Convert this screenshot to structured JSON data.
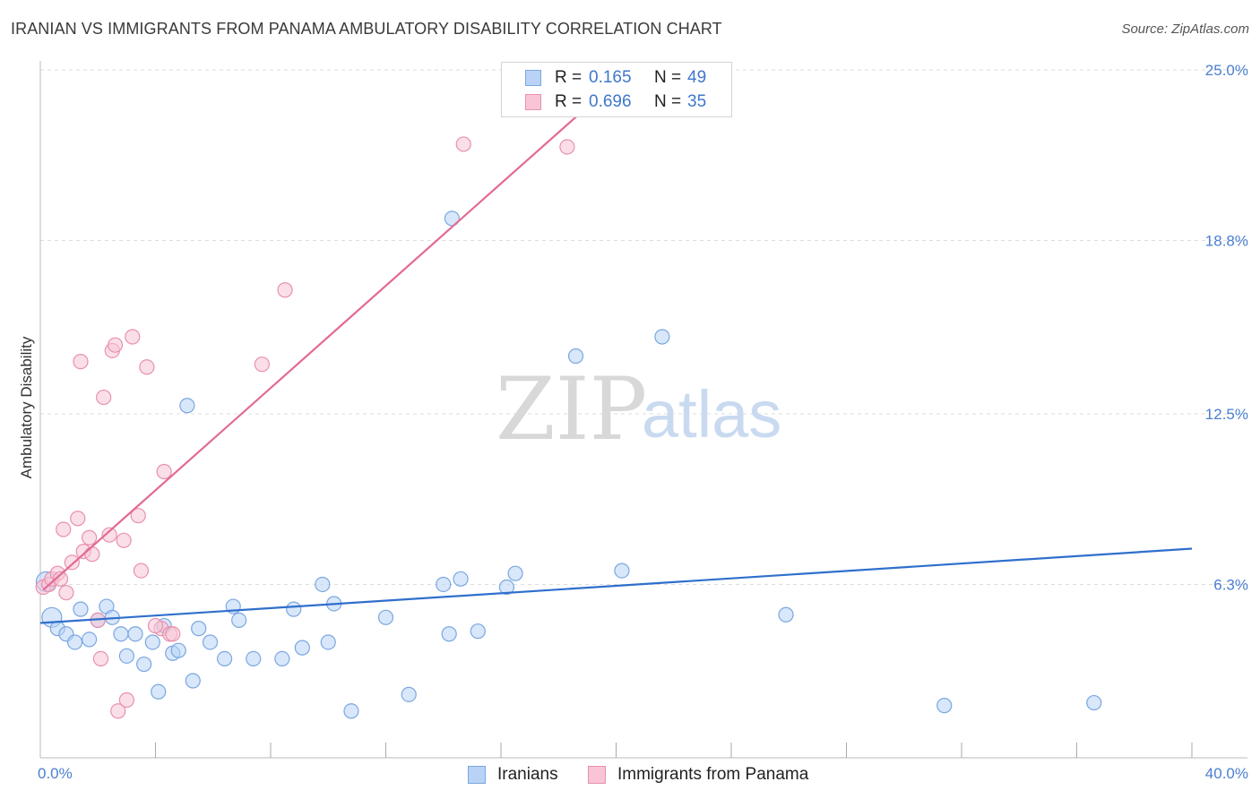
{
  "title": "IRANIAN VS IMMIGRANTS FROM PANAMA AMBULATORY DISABILITY CORRELATION CHART",
  "source": "Source: ZipAtlas.com",
  "watermark": {
    "zip": "ZIP",
    "atlas": "atlas"
  },
  "colors": {
    "blue_fill": "#b8d3f5",
    "blue_stroke": "#7aa7e0",
    "blue_line": "#2f6fcc",
    "pink_fill": "#f8c4d6",
    "pink_stroke": "#e890ae",
    "pink_line": "#e36a93",
    "grid": "#dddddd",
    "tick_text": "#4a7fcf"
  },
  "stats": [
    {
      "r_label": "R =",
      "r_value": "0.165",
      "n_label": "N =",
      "n_value": "49",
      "color": "blue"
    },
    {
      "r_label": "R =",
      "r_value": "0.696",
      "n_label": "N =",
      "n_value": "35",
      "color": "pink"
    }
  ],
  "legend": [
    {
      "label": "Iranians",
      "color": "blue"
    },
    {
      "label": "Immigrants from Panama",
      "color": "pink"
    }
  ],
  "chart_data": {
    "type": "scatter",
    "title": "IRANIAN VS IMMIGRANTS FROM PANAMA AMBULATORY DISABILITY CORRELATION CHART",
    "xlabel": "",
    "ylabel": "Ambulatory Disability",
    "xlim": [
      0,
      40
    ],
    "ylim": [
      0,
      25
    ],
    "x_tick_labels": [
      {
        "value": 0,
        "label": "0.0%"
      },
      {
        "value": 40,
        "label": "40.0%"
      }
    ],
    "y_tick_labels": [
      {
        "value": 6.3,
        "label": "6.3%"
      },
      {
        "value": 12.5,
        "label": "12.5%"
      },
      {
        "value": 18.8,
        "label": "18.8%"
      },
      {
        "value": 25.0,
        "label": "25.0%"
      }
    ],
    "x_minor_ticks": [
      4,
      8,
      12,
      16,
      20,
      24,
      28,
      32,
      36,
      40
    ],
    "grid": true,
    "legend_position": "bottom-center",
    "series": [
      {
        "name": "Iranians",
        "color": "blue",
        "points": [
          [
            0.2,
            6.4
          ],
          [
            0.4,
            5.1
          ],
          [
            0.6,
            4.7
          ],
          [
            0.9,
            4.5
          ],
          [
            1.2,
            4.2
          ],
          [
            1.4,
            5.4
          ],
          [
            1.7,
            4.3
          ],
          [
            2.0,
            5.0
          ],
          [
            2.3,
            5.5
          ],
          [
            2.5,
            5.1
          ],
          [
            2.8,
            4.5
          ],
          [
            3.0,
            3.7
          ],
          [
            3.3,
            4.5
          ],
          [
            3.6,
            3.4
          ],
          [
            3.9,
            4.2
          ],
          [
            4.1,
            2.4
          ],
          [
            4.3,
            4.8
          ],
          [
            4.6,
            3.8
          ],
          [
            4.8,
            3.9
          ],
          [
            5.1,
            12.8
          ],
          [
            5.3,
            2.8
          ],
          [
            5.5,
            4.7
          ],
          [
            5.9,
            4.2
          ],
          [
            6.4,
            3.6
          ],
          [
            6.7,
            5.5
          ],
          [
            6.9,
            5.0
          ],
          [
            7.4,
            3.6
          ],
          [
            8.4,
            3.6
          ],
          [
            8.8,
            5.4
          ],
          [
            9.1,
            4.0
          ],
          [
            9.8,
            6.3
          ],
          [
            10.0,
            4.2
          ],
          [
            10.2,
            5.6
          ],
          [
            10.8,
            1.7
          ],
          [
            12.0,
            5.1
          ],
          [
            12.8,
            2.3
          ],
          [
            14.0,
            6.3
          ],
          [
            14.2,
            4.5
          ],
          [
            14.3,
            19.6
          ],
          [
            14.6,
            6.5
          ],
          [
            15.2,
            4.6
          ],
          [
            16.2,
            6.2
          ],
          [
            16.5,
            6.7
          ],
          [
            18.6,
            14.6
          ],
          [
            20.2,
            6.8
          ],
          [
            21.6,
            15.3
          ],
          [
            25.9,
            5.2
          ],
          [
            31.4,
            1.9
          ],
          [
            36.6,
            2.0
          ]
        ]
      },
      {
        "name": "Immigrants from Panama",
        "color": "pink",
        "points": [
          [
            0.1,
            6.2
          ],
          [
            0.3,
            6.3
          ],
          [
            0.4,
            6.5
          ],
          [
            0.6,
            6.7
          ],
          [
            0.7,
            6.5
          ],
          [
            0.8,
            8.3
          ],
          [
            0.9,
            6.0
          ],
          [
            1.1,
            7.1
          ],
          [
            1.3,
            8.7
          ],
          [
            1.4,
            14.4
          ],
          [
            1.5,
            7.5
          ],
          [
            1.7,
            8.0
          ],
          [
            1.8,
            7.4
          ],
          [
            2.0,
            5.0
          ],
          [
            2.1,
            3.6
          ],
          [
            2.2,
            13.1
          ],
          [
            2.4,
            8.1
          ],
          [
            2.5,
            14.8
          ],
          [
            2.6,
            15.0
          ],
          [
            2.7,
            1.7
          ],
          [
            2.9,
            7.9
          ],
          [
            3.0,
            2.1
          ],
          [
            3.2,
            15.3
          ],
          [
            3.4,
            8.8
          ],
          [
            3.5,
            6.8
          ],
          [
            3.7,
            14.2
          ],
          [
            4.2,
            4.7
          ],
          [
            4.3,
            10.4
          ],
          [
            4.5,
            4.5
          ],
          [
            4.6,
            4.5
          ],
          [
            7.7,
            14.3
          ],
          [
            8.5,
            17.0
          ],
          [
            14.7,
            22.3
          ],
          [
            18.3,
            22.2
          ],
          [
            4.0,
            4.8
          ]
        ]
      }
    ],
    "trend_lines": [
      {
        "name": "Iranians",
        "color": "blue",
        "x": [
          0,
          40
        ],
        "y": [
          4.9,
          7.6
        ]
      },
      {
        "name": "Immigrants from Panama",
        "color": "pink",
        "x": [
          0.1,
          19.8
        ],
        "y": [
          6.1,
          24.4
        ]
      }
    ]
  }
}
